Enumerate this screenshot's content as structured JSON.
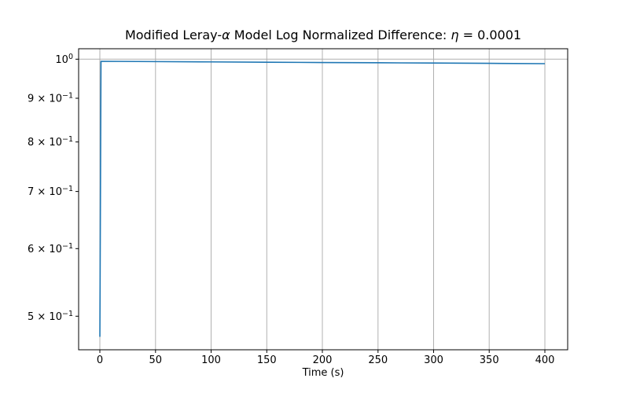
{
  "figure": {
    "background": "#ffffff"
  },
  "chart_data": {
    "type": "line",
    "title": "Modified Leray-α Model Log Normalized Difference: η = 0.0001",
    "title_parts": {
      "pre": "Modified Leray-",
      "alpha": "α",
      "mid": " Model Log Normalized Difference: ",
      "eta": "η",
      "post": " = 0.0001"
    },
    "xlabel": "Time (s)",
    "ylabel": "",
    "yscale": "log",
    "xlim": [
      -19.1,
      420.5
    ],
    "ylim": [
      0.4567,
      1.0286
    ],
    "grid": "major",
    "legend": "none",
    "line_color": "#1f77b4",
    "grid_color": "#b0b0b0",
    "spine_color": "#000000",
    "xticks": [
      {
        "v": 0,
        "label": "0"
      },
      {
        "v": 50,
        "label": "50"
      },
      {
        "v": 100,
        "label": "100"
      },
      {
        "v": 150,
        "label": "150"
      },
      {
        "v": 200,
        "label": "200"
      },
      {
        "v": 250,
        "label": "250"
      },
      {
        "v": 300,
        "label": "300"
      },
      {
        "v": 350,
        "label": "350"
      },
      {
        "v": 400,
        "label": "400"
      }
    ],
    "yticks": [
      {
        "v": 1.0,
        "pre": "10",
        "sup": "0",
        "grid": true
      },
      {
        "v": 0.9,
        "pre": "9 × 10",
        "sup": "−1",
        "grid": false
      },
      {
        "v": 0.8,
        "pre": "8 × 10",
        "sup": "−1",
        "grid": false
      },
      {
        "v": 0.7,
        "pre": "7 × 10",
        "sup": "−1",
        "grid": false
      },
      {
        "v": 0.6,
        "pre": "6 × 10",
        "sup": "−1",
        "grid": false
      },
      {
        "v": 0.5,
        "pre": "5 × 10",
        "sup": "−1",
        "grid": false
      }
    ],
    "series": [
      {
        "name": "log-normalized-difference",
        "x": [
          0,
          1,
          50,
          100,
          150,
          200,
          250,
          300,
          350,
          400
        ],
        "y": [
          0.473,
          0.9943,
          0.9935,
          0.9927,
          0.9919,
          0.9911,
          0.9904,
          0.9896,
          0.9888,
          0.988
        ]
      }
    ]
  }
}
